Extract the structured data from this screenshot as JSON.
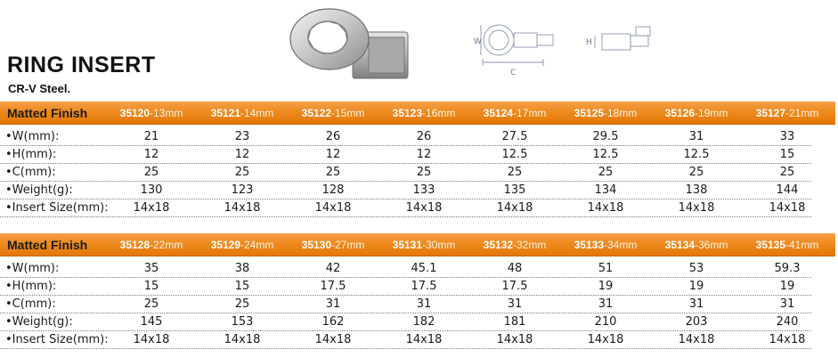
{
  "title": "RING INSERT",
  "subtitle": "CR-V Steel.",
  "diagram": {
    "w_label": "W",
    "h_label": "H",
    "c_label": "C"
  },
  "row_labels": [
    "•W(mm):",
    "•H(mm):",
    "•C(mm):",
    "•Weight(g):",
    "•Insert Size(mm):"
  ],
  "tables": [
    {
      "header_label": "Matted Finish",
      "columns": [
        {
          "code": "35120",
          "size": "-13mm"
        },
        {
          "code": "35121",
          "size": "-14mm"
        },
        {
          "code": "35122",
          "size": "-15mm"
        },
        {
          "code": "35123",
          "size": "-16mm"
        },
        {
          "code": "35124",
          "size": "-17mm"
        },
        {
          "code": "35125",
          "size": "-18mm"
        },
        {
          "code": "35126",
          "size": "-19mm"
        },
        {
          "code": "35127",
          "size": "-21mm"
        }
      ],
      "rows": [
        [
          "21",
          "23",
          "26",
          "26",
          "27.5",
          "29.5",
          "31",
          "33"
        ],
        [
          "12",
          "12",
          "12",
          "12",
          "12.5",
          "12.5",
          "12.5",
          "15"
        ],
        [
          "25",
          "25",
          "25",
          "25",
          "25",
          "25",
          "25",
          "25"
        ],
        [
          "130",
          "123",
          "128",
          "133",
          "135",
          "134",
          "138",
          "144"
        ],
        [
          "14x18",
          "14x18",
          "14x18",
          "14x18",
          "14x18",
          "14x18",
          "14x18",
          "14x18"
        ]
      ]
    },
    {
      "header_label": "Matted Finish",
      "columns": [
        {
          "code": "35128",
          "size": "-22mm"
        },
        {
          "code": "35129",
          "size": "-24mm"
        },
        {
          "code": "35130",
          "size": "-27mm"
        },
        {
          "code": "35131",
          "size": "-30mm"
        },
        {
          "code": "35132",
          "size": "-32mm"
        },
        {
          "code": "35133",
          "size": "-34mm"
        },
        {
          "code": "35134",
          "size": "-36mm"
        },
        {
          "code": "35135",
          "size": "-41mm"
        }
      ],
      "rows": [
        [
          "35",
          "38",
          "42",
          "45.1",
          "48",
          "51",
          "53",
          "59.3"
        ],
        [
          "15",
          "15",
          "17.5",
          "17.5",
          "17.5",
          "19",
          "19",
          "19"
        ],
        [
          "25",
          "25",
          "31",
          "31",
          "31",
          "31",
          "31",
          "31"
        ],
        [
          "145",
          "153",
          "162",
          "182",
          "181",
          "210",
          "203",
          "240"
        ],
        [
          "14x18",
          "14x18",
          "14x18",
          "14x18",
          "14x18",
          "14x18",
          "14x18",
          "14x18"
        ]
      ]
    }
  ]
}
